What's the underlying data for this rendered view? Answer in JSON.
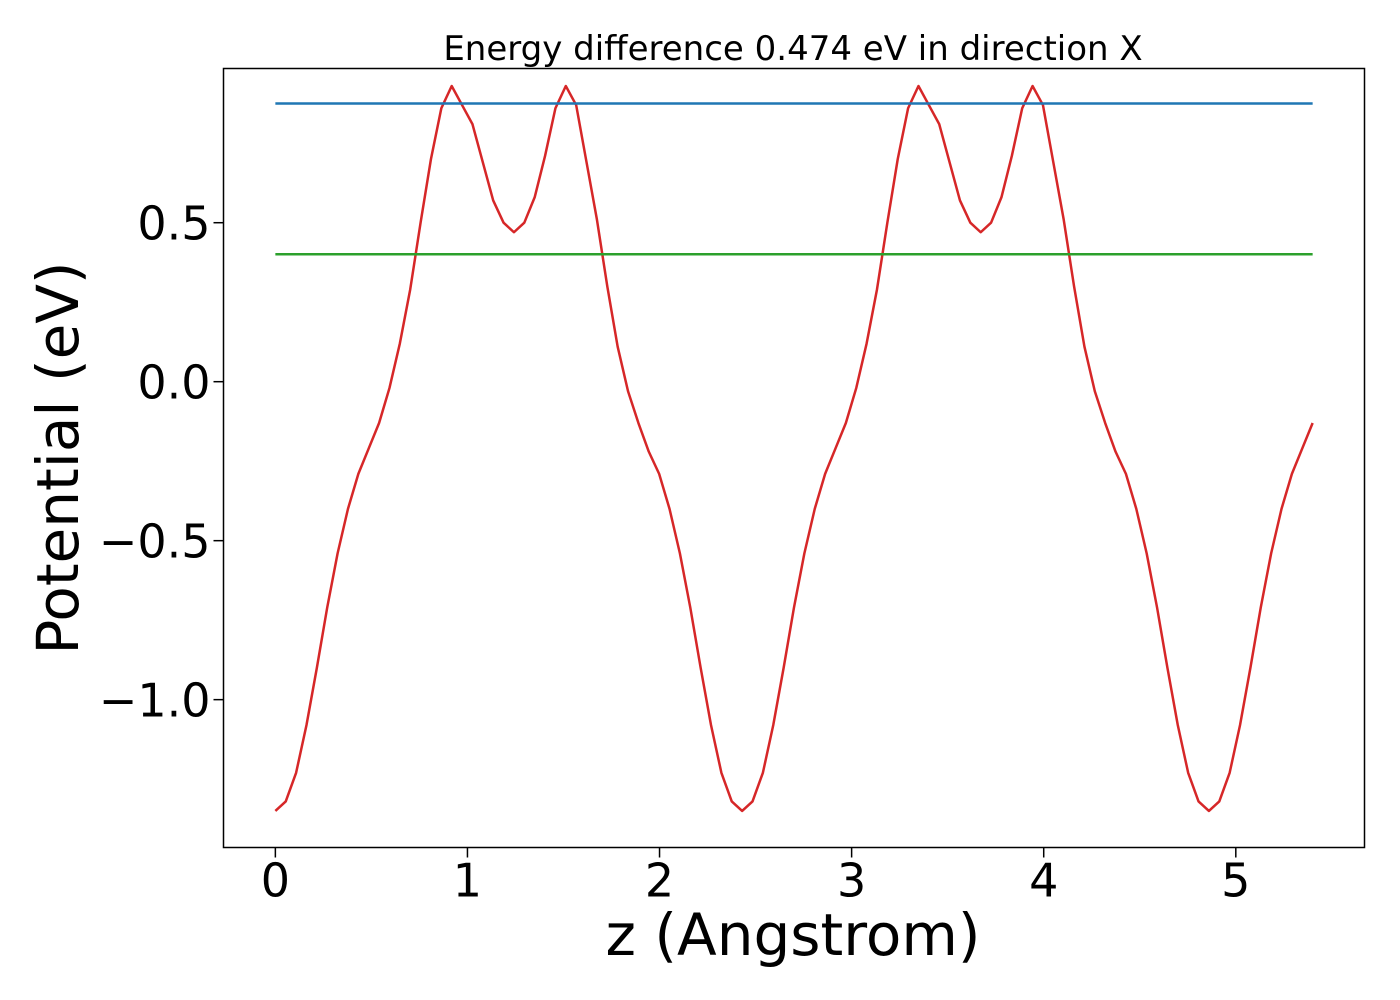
{
  "chart_data": {
    "type": "line",
    "title": "Energy difference 0.474 eV in direction X",
    "xlabel": "z (Angstrom)",
    "ylabel": "Potential (eV)",
    "xlim": [
      -0.27,
      5.67
    ],
    "ylim": [
      -1.465,
      0.985
    ],
    "xticks": [
      0,
      1,
      2,
      3,
      4,
      5
    ],
    "xtick_labels": [
      "0",
      "1",
      "2",
      "3",
      "4",
      "5"
    ],
    "yticks": [
      -1.0,
      -0.5,
      0.0,
      0.5
    ],
    "ytick_labels": [
      "−1.0",
      "−0.5",
      "0.0",
      "0.5"
    ],
    "grid": false,
    "legend": "none",
    "series": [
      {
        "color": "#d62728",
        "x": [
          0.0,
          0.054,
          0.108,
          0.162,
          0.216,
          0.27,
          0.324,
          0.378,
          0.432,
          0.486,
          0.54,
          0.594,
          0.648,
          0.702,
          0.756,
          0.81,
          0.864,
          0.918,
          0.972,
          1.026,
          1.08,
          1.134,
          1.188,
          1.242,
          1.296,
          1.35,
          1.404,
          1.458,
          1.512,
          1.566,
          1.62,
          1.674,
          1.728,
          1.782,
          1.836,
          1.89,
          1.944,
          1.998,
          2.052,
          2.106,
          2.16,
          2.214,
          2.268,
          2.322,
          2.376,
          2.43,
          2.484,
          2.538,
          2.592,
          2.646,
          2.7,
          2.754,
          2.808,
          2.862,
          2.916,
          2.97,
          3.024,
          3.078,
          3.132,
          3.186,
          3.24,
          3.294,
          3.348,
          3.402,
          3.456,
          3.51,
          3.564,
          3.618,
          3.672,
          3.726,
          3.78,
          3.834,
          3.888,
          3.942,
          3.996,
          4.05,
          4.104,
          4.158,
          4.212,
          4.266,
          4.32,
          4.374,
          4.428,
          4.482,
          4.536,
          4.59,
          4.644,
          4.698,
          4.752,
          4.806,
          4.86,
          4.914,
          4.968,
          5.022,
          5.076,
          5.13,
          5.184,
          5.238,
          5.292,
          5.346,
          5.4
        ],
        "y": [
          -1.35,
          -1.32,
          -1.23,
          -1.08,
          -0.9,
          -0.71,
          -0.54,
          -0.4,
          -0.29,
          -0.21,
          -0.13,
          -0.02,
          0.12,
          0.29,
          0.5,
          0.7,
          0.86,
          0.93,
          0.87,
          0.81,
          0.69,
          0.57,
          0.5,
          0.47,
          0.5,
          0.58,
          0.71,
          0.86,
          0.93,
          0.87,
          0.69,
          0.51,
          0.3,
          0.11,
          -0.03,
          -0.13,
          -0.22,
          -0.29,
          -0.4,
          -0.54,
          -0.71,
          -0.9,
          -1.08,
          -1.23,
          -1.32,
          -1.35,
          -1.32,
          -1.23,
          -1.08,
          -0.9,
          -0.71,
          -0.54,
          -0.4,
          -0.29,
          -0.21,
          -0.13,
          -0.02,
          0.12,
          0.29,
          0.5,
          0.7,
          0.86,
          0.93,
          0.87,
          0.81,
          0.69,
          0.57,
          0.5,
          0.47,
          0.5,
          0.58,
          0.71,
          0.86,
          0.93,
          0.87,
          0.69,
          0.51,
          0.3,
          0.11,
          -0.03,
          -0.13,
          -0.22,
          -0.29,
          -0.4,
          -0.54,
          -0.71,
          -0.9,
          -1.08,
          -1.23,
          -1.32,
          -1.35,
          -1.32,
          -1.23,
          -1.08,
          -0.9,
          -0.71,
          -0.54,
          -0.4,
          -0.29,
          -0.21,
          -0.13
        ]
      },
      {
        "color": "#1f77b4",
        "x": [
          0.0,
          5.4
        ],
        "y": [
          0.875,
          0.875
        ]
      },
      {
        "color": "#2ca02c",
        "x": [
          0.0,
          5.4
        ],
        "y": [
          0.401,
          0.401
        ]
      }
    ]
  }
}
